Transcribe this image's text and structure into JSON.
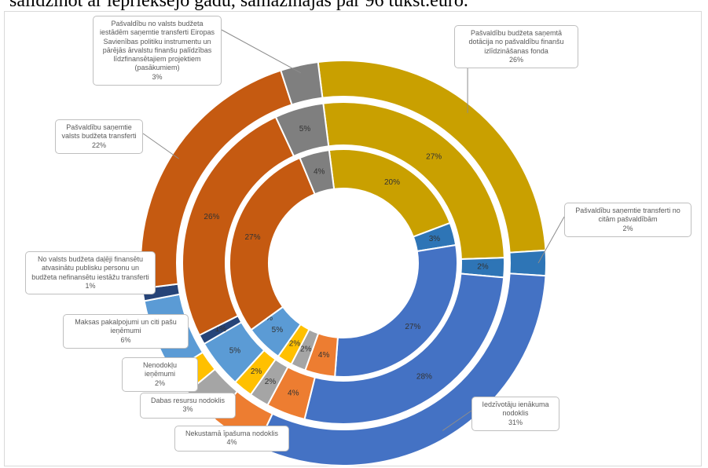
{
  "caption": "salīdzinot ar iepriekšējo gadu, samazinājās par 96 tūkst.euro.",
  "chart_data": {
    "type": "donut",
    "categories": [
      "Pašvaldību budžeta saņemtā dotācija no pašvaldību finanšu izlīdzināšanas fonda",
      "Pašvaldību saņemtie transferti no citām pašvaldībām",
      "Iedzīvotāju ienākuma nodoklis",
      "Nekustamā īpašuma nodoklis",
      "Dabas resursu nodoklis",
      "Nenodokļu ieņēmumi",
      "Maksas pakalpojumi un citi pašu ieņēmumi",
      "No valsts budžeta daļēji finansētu atvasinātu publisku personu un budžeta nefinansētu iestāžu transferti",
      "Pašvaldību saņemtie valsts budžeta transferti",
      "Pašvaldību no valsts budžeta iestādēm saņemtie transferti Eiropas Savienības politiku instrumentu un pārējās ārvalstu finanšu palīdzības līdzfinansētajiem projektiem (pasākumiem)"
    ],
    "colors": [
      "#c9a000",
      "#2e75b6",
      "#4472c4",
      "#ed7d31",
      "#a5a5a5",
      "#ffc000",
      "#5b9bd5",
      "#264478",
      "#c55a11",
      "#7f7f7f"
    ],
    "series": [
      {
        "values": [
          20,
          3,
          27,
          4,
          2,
          2,
          5,
          0,
          27,
          4
        ],
        "value_labels": [
          "20%",
          "3%",
          "27%",
          "4%",
          "2%",
          "2%",
          "5%",
          "0%",
          "27%",
          "4%"
        ]
      },
      {
        "values": [
          27,
          2,
          28,
          4,
          2,
          2,
          5,
          1,
          26,
          5
        ],
        "value_labels": [
          "27%",
          "2%",
          "28%",
          "4%",
          "2%",
          "2%",
          "5%",
          "1%",
          "26%",
          "5%"
        ]
      },
      {
        "values": [
          26,
          2,
          31,
          4,
          3,
          2,
          6,
          1,
          22,
          3
        ],
        "value_labels": [
          "26%",
          "2%",
          "31%",
          "4%",
          "3%",
          "2%",
          "6%",
          "1%",
          "22%",
          "3%"
        ]
      }
    ]
  }
}
